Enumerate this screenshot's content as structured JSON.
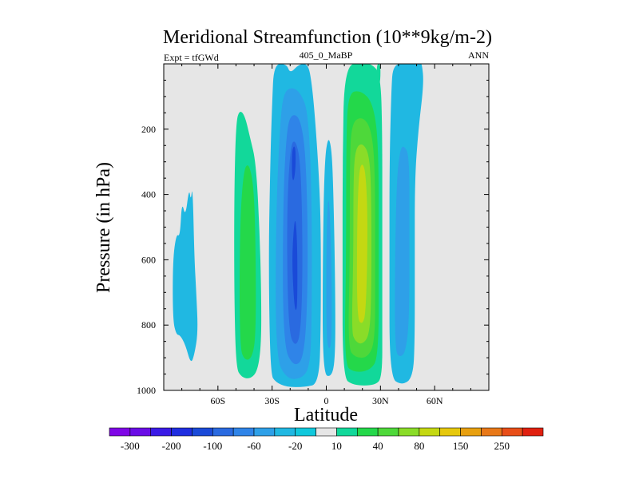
{
  "chart_data": {
    "type": "contour",
    "title": "Meridional Streamfunction (10**9kg/m-2)",
    "left_label": "Expt = tfGWd",
    "center_label": "405_0_MaBP",
    "right_label": "ANN",
    "xlabel": "Latitude",
    "ylabel": "Pressure (in hPa)",
    "xlim": [
      -90,
      90
    ],
    "ylim": [
      1000,
      0
    ],
    "x_ticks": [
      {
        "value": -60,
        "label": "60S"
      },
      {
        "value": -30,
        "label": "30S"
      },
      {
        "value": 0,
        "label": "0"
      },
      {
        "value": 30,
        "label": "30N"
      },
      {
        "value": 60,
        "label": "60N"
      }
    ],
    "y_ticks": [
      {
        "value": 200,
        "label": "200"
      },
      {
        "value": 400,
        "label": "400"
      },
      {
        "value": 600,
        "label": "600"
      },
      {
        "value": 800,
        "label": "800"
      },
      {
        "value": 1000,
        "label": "1000"
      }
    ],
    "colorbar": {
      "colors": [
        "#7f06e6",
        "#6a0ce6",
        "#3a1ae6",
        "#1f2ee0",
        "#1a4ad8",
        "#2a6ae0",
        "#2f84e8",
        "#2ea0e8",
        "#20b8e2",
        "#10c8dc",
        "#e6e6e6",
        "#12d89a",
        "#24d84a",
        "#4ed83a",
        "#8adc28",
        "#c4d812",
        "#e6c80c",
        "#e8a010",
        "#e87818",
        "#e84e18",
        "#e02010"
      ],
      "labels": [
        "-300",
        "-200",
        "-100",
        "-60",
        "-20",
        "10",
        "40",
        "80",
        "150",
        "250"
      ],
      "label_boundary_index": [
        1,
        3,
        5,
        7,
        9,
        11,
        13,
        15,
        17,
        19
      ]
    },
    "regions": [
      {
        "name": "sh-polar-cell",
        "color": "#20b8e2",
        "level": -10,
        "points": [
          [
            -85,
            785
          ],
          [
            -85,
            600
          ],
          [
            -83,
            520
          ],
          [
            -81,
            530
          ],
          [
            -80,
            420
          ],
          [
            -78,
            470
          ],
          [
            -76,
            380
          ],
          [
            -75,
            420
          ],
          [
            -74,
            370
          ],
          [
            -73,
            600
          ],
          [
            -72,
            700
          ],
          [
            -71,
            820
          ],
          [
            -73,
            890
          ],
          [
            -75,
            920
          ],
          [
            -78,
            860
          ],
          [
            -81,
            830
          ],
          [
            -83,
            830
          ]
        ]
      },
      {
        "name": "sh-ferrel-outer",
        "color": "#12d89a",
        "level": 10,
        "points": [
          [
            -50,
            930
          ],
          [
            -51,
            700
          ],
          [
            -51,
            400
          ],
          [
            -50,
            180
          ],
          [
            -48,
            140
          ],
          [
            -45,
            160
          ],
          [
            -42,
            230
          ],
          [
            -39,
            300
          ],
          [
            -37,
            500
          ],
          [
            -36,
            700
          ],
          [
            -36,
            860
          ],
          [
            -38,
            940
          ],
          [
            -42,
            965
          ],
          [
            -47,
            960
          ]
        ]
      },
      {
        "name": "sh-ferrel-core",
        "color": "#24d84a",
        "level": 30,
        "points": [
          [
            -48,
            870
          ],
          [
            -48,
            520
          ],
          [
            -46,
            330
          ],
          [
            -43,
            300
          ],
          [
            -40,
            380
          ],
          [
            -39,
            600
          ],
          [
            -39,
            830
          ],
          [
            -41,
            900
          ],
          [
            -45,
            910
          ]
        ]
      },
      {
        "name": "hadley-sh-outer",
        "color": "#20b8e2",
        "level": -10,
        "points": [
          [
            -31,
            950
          ],
          [
            -32,
            600
          ],
          [
            -31,
            300
          ],
          [
            -30,
            120
          ],
          [
            -29,
            0
          ],
          [
            -22,
            0
          ],
          [
            -20,
            30
          ],
          [
            -15,
            0
          ],
          [
            -10,
            0
          ],
          [
            -8,
            60
          ],
          [
            -6,
            180
          ],
          [
            -4,
            350
          ],
          [
            -3,
            500
          ],
          [
            -3,
            800
          ],
          [
            -4,
            980
          ],
          [
            -12,
            990
          ],
          [
            -22,
            990
          ],
          [
            -28,
            975
          ]
        ]
      },
      {
        "name": "hadley-sh-l2",
        "color": "#2ea0e8",
        "level": -30,
        "points": [
          [
            -28,
            900
          ],
          [
            -28,
            500
          ],
          [
            -26,
            220
          ],
          [
            -24,
            90
          ],
          [
            -19,
            70
          ],
          [
            -14,
            90
          ],
          [
            -10,
            150
          ],
          [
            -8,
            400
          ],
          [
            -8,
            780
          ],
          [
            -9,
            930
          ],
          [
            -14,
            965
          ],
          [
            -22,
            965
          ]
        ]
      },
      {
        "name": "hadley-sh-l3",
        "color": "#2f84e8",
        "level": -50,
        "points": [
          [
            -24,
            860
          ],
          [
            -24,
            430
          ],
          [
            -22,
            200
          ],
          [
            -19,
            150
          ],
          [
            -14,
            170
          ],
          [
            -11,
            300
          ],
          [
            -10,
            650
          ],
          [
            -12,
            900
          ],
          [
            -18,
            930
          ]
        ]
      },
      {
        "name": "hadley-sh-l4",
        "color": "#2a6ae0",
        "level": -80,
        "points": [
          [
            -21,
            820
          ],
          [
            -22,
            480
          ],
          [
            -20,
            250
          ],
          [
            -17,
            230
          ],
          [
            -14,
            310
          ],
          [
            -13,
            600
          ],
          [
            -14,
            820
          ],
          [
            -17,
            870
          ]
        ]
      },
      {
        "name": "hadley-sh-core-upper",
        "color": "#1a4ad8",
        "level": -100,
        "points": [
          [
            -19,
            350
          ],
          [
            -19,
            270
          ],
          [
            -18,
            250
          ],
          [
            -17,
            260
          ],
          [
            -17,
            320
          ],
          [
            -18,
            360
          ]
        ]
      },
      {
        "name": "hadley-sh-core-lower",
        "color": "#1a4ad8",
        "level": -100,
        "points": [
          [
            -18,
            720
          ],
          [
            -19,
            600
          ],
          [
            -18,
            500
          ],
          [
            -17,
            470
          ],
          [
            -16,
            560
          ],
          [
            -16,
            740
          ],
          [
            -17,
            760
          ]
        ]
      },
      {
        "name": "equatorial-small-cell",
        "color": "#20b8e2",
        "level": -10,
        "points": [
          [
            -2,
            950
          ],
          [
            -2,
            600
          ],
          [
            -1,
            300
          ],
          [
            1,
            220
          ],
          [
            3,
            260
          ],
          [
            4,
            400
          ],
          [
            5,
            700
          ],
          [
            5,
            900
          ],
          [
            3,
            960
          ]
        ]
      },
      {
        "name": "equatorial-small-cell-inner",
        "color": "#2ea0e8",
        "level": -30,
        "points": [
          [
            0,
            850
          ],
          [
            0,
            550
          ],
          [
            1,
            400
          ],
          [
            2,
            450
          ],
          [
            3,
            650
          ],
          [
            3,
            830
          ],
          [
            2,
            880
          ]
        ]
      },
      {
        "name": "hadley-nh-outer",
        "color": "#12d89a",
        "level": 10,
        "points": [
          [
            9,
            960
          ],
          [
            9,
            600
          ],
          [
            9,
            300
          ],
          [
            10,
            0
          ],
          [
            21,
            0
          ],
          [
            25,
            0
          ],
          [
            30,
            30
          ],
          [
            31,
            200
          ],
          [
            31,
            500
          ],
          [
            31,
            800
          ],
          [
            31,
            960
          ],
          [
            27,
            985
          ],
          [
            15,
            985
          ]
        ]
      },
      {
        "name": "hadley-nh-l2",
        "color": "#24d84a",
        "level": 30,
        "points": [
          [
            10,
            920
          ],
          [
            11,
            600
          ],
          [
            11,
            250
          ],
          [
            12,
            90
          ],
          [
            19,
            80
          ],
          [
            26,
            120
          ],
          [
            29,
            250
          ],
          [
            29,
            600
          ],
          [
            29,
            900
          ],
          [
            24,
            940
          ],
          [
            15,
            945
          ]
        ]
      },
      {
        "name": "hadley-nh-l3",
        "color": "#4ed83a",
        "level": 50,
        "points": [
          [
            12,
            870
          ],
          [
            13,
            600
          ],
          [
            13,
            300
          ],
          [
            14,
            180
          ],
          [
            20,
            160
          ],
          [
            25,
            200
          ],
          [
            27,
            320
          ],
          [
            27,
            650
          ],
          [
            27,
            850
          ],
          [
            23,
            900
          ],
          [
            16,
            900
          ]
        ]
      },
      {
        "name": "hadley-nh-l4",
        "color": "#8adc28",
        "level": 70,
        "points": [
          [
            14,
            820
          ],
          [
            15,
            600
          ],
          [
            15,
            360
          ],
          [
            16,
            260
          ],
          [
            20,
            240
          ],
          [
            24,
            280
          ],
          [
            25,
            420
          ],
          [
            25,
            700
          ],
          [
            24,
            830
          ],
          [
            20,
            860
          ],
          [
            16,
            850
          ]
        ]
      },
      {
        "name": "hadley-nh-core",
        "color": "#c4d812",
        "level": 90,
        "points": [
          [
            17,
            780
          ],
          [
            17,
            500
          ],
          [
            18,
            330
          ],
          [
            20,
            300
          ],
          [
            22,
            340
          ],
          [
            23,
            500
          ],
          [
            22,
            760
          ],
          [
            20,
            800
          ]
        ]
      },
      {
        "name": "nh-ferrel-outer",
        "color": "#20b8e2",
        "level": -10,
        "points": [
          [
            35,
            960
          ],
          [
            35,
            600
          ],
          [
            35,
            300
          ],
          [
            36,
            80
          ],
          [
            37,
            0
          ],
          [
            45,
            0
          ],
          [
            52,
            0
          ],
          [
            53,
            0
          ],
          [
            54,
            60
          ],
          [
            51,
            200
          ],
          [
            49,
            350
          ],
          [
            49,
            600
          ],
          [
            49,
            850
          ],
          [
            48,
            960
          ],
          [
            42,
            985
          ]
        ]
      },
      {
        "name": "nh-ferrel-inner",
        "color": "#2ea0e8",
        "level": -30,
        "points": [
          [
            38,
            880
          ],
          [
            38,
            600
          ],
          [
            39,
            350
          ],
          [
            41,
            260
          ],
          [
            43,
            250
          ],
          [
            46,
            280
          ],
          [
            46,
            500
          ],
          [
            46,
            780
          ],
          [
            44,
            880
          ],
          [
            41,
            900
          ]
        ]
      },
      {
        "name": "nh-top-wisp",
        "color": "#12d89a",
        "level": 10,
        "points": [
          [
            28,
            0
          ],
          [
            30,
            0
          ],
          [
            30,
            50
          ],
          [
            29,
            70
          ],
          [
            28,
            40
          ]
        ]
      }
    ]
  }
}
